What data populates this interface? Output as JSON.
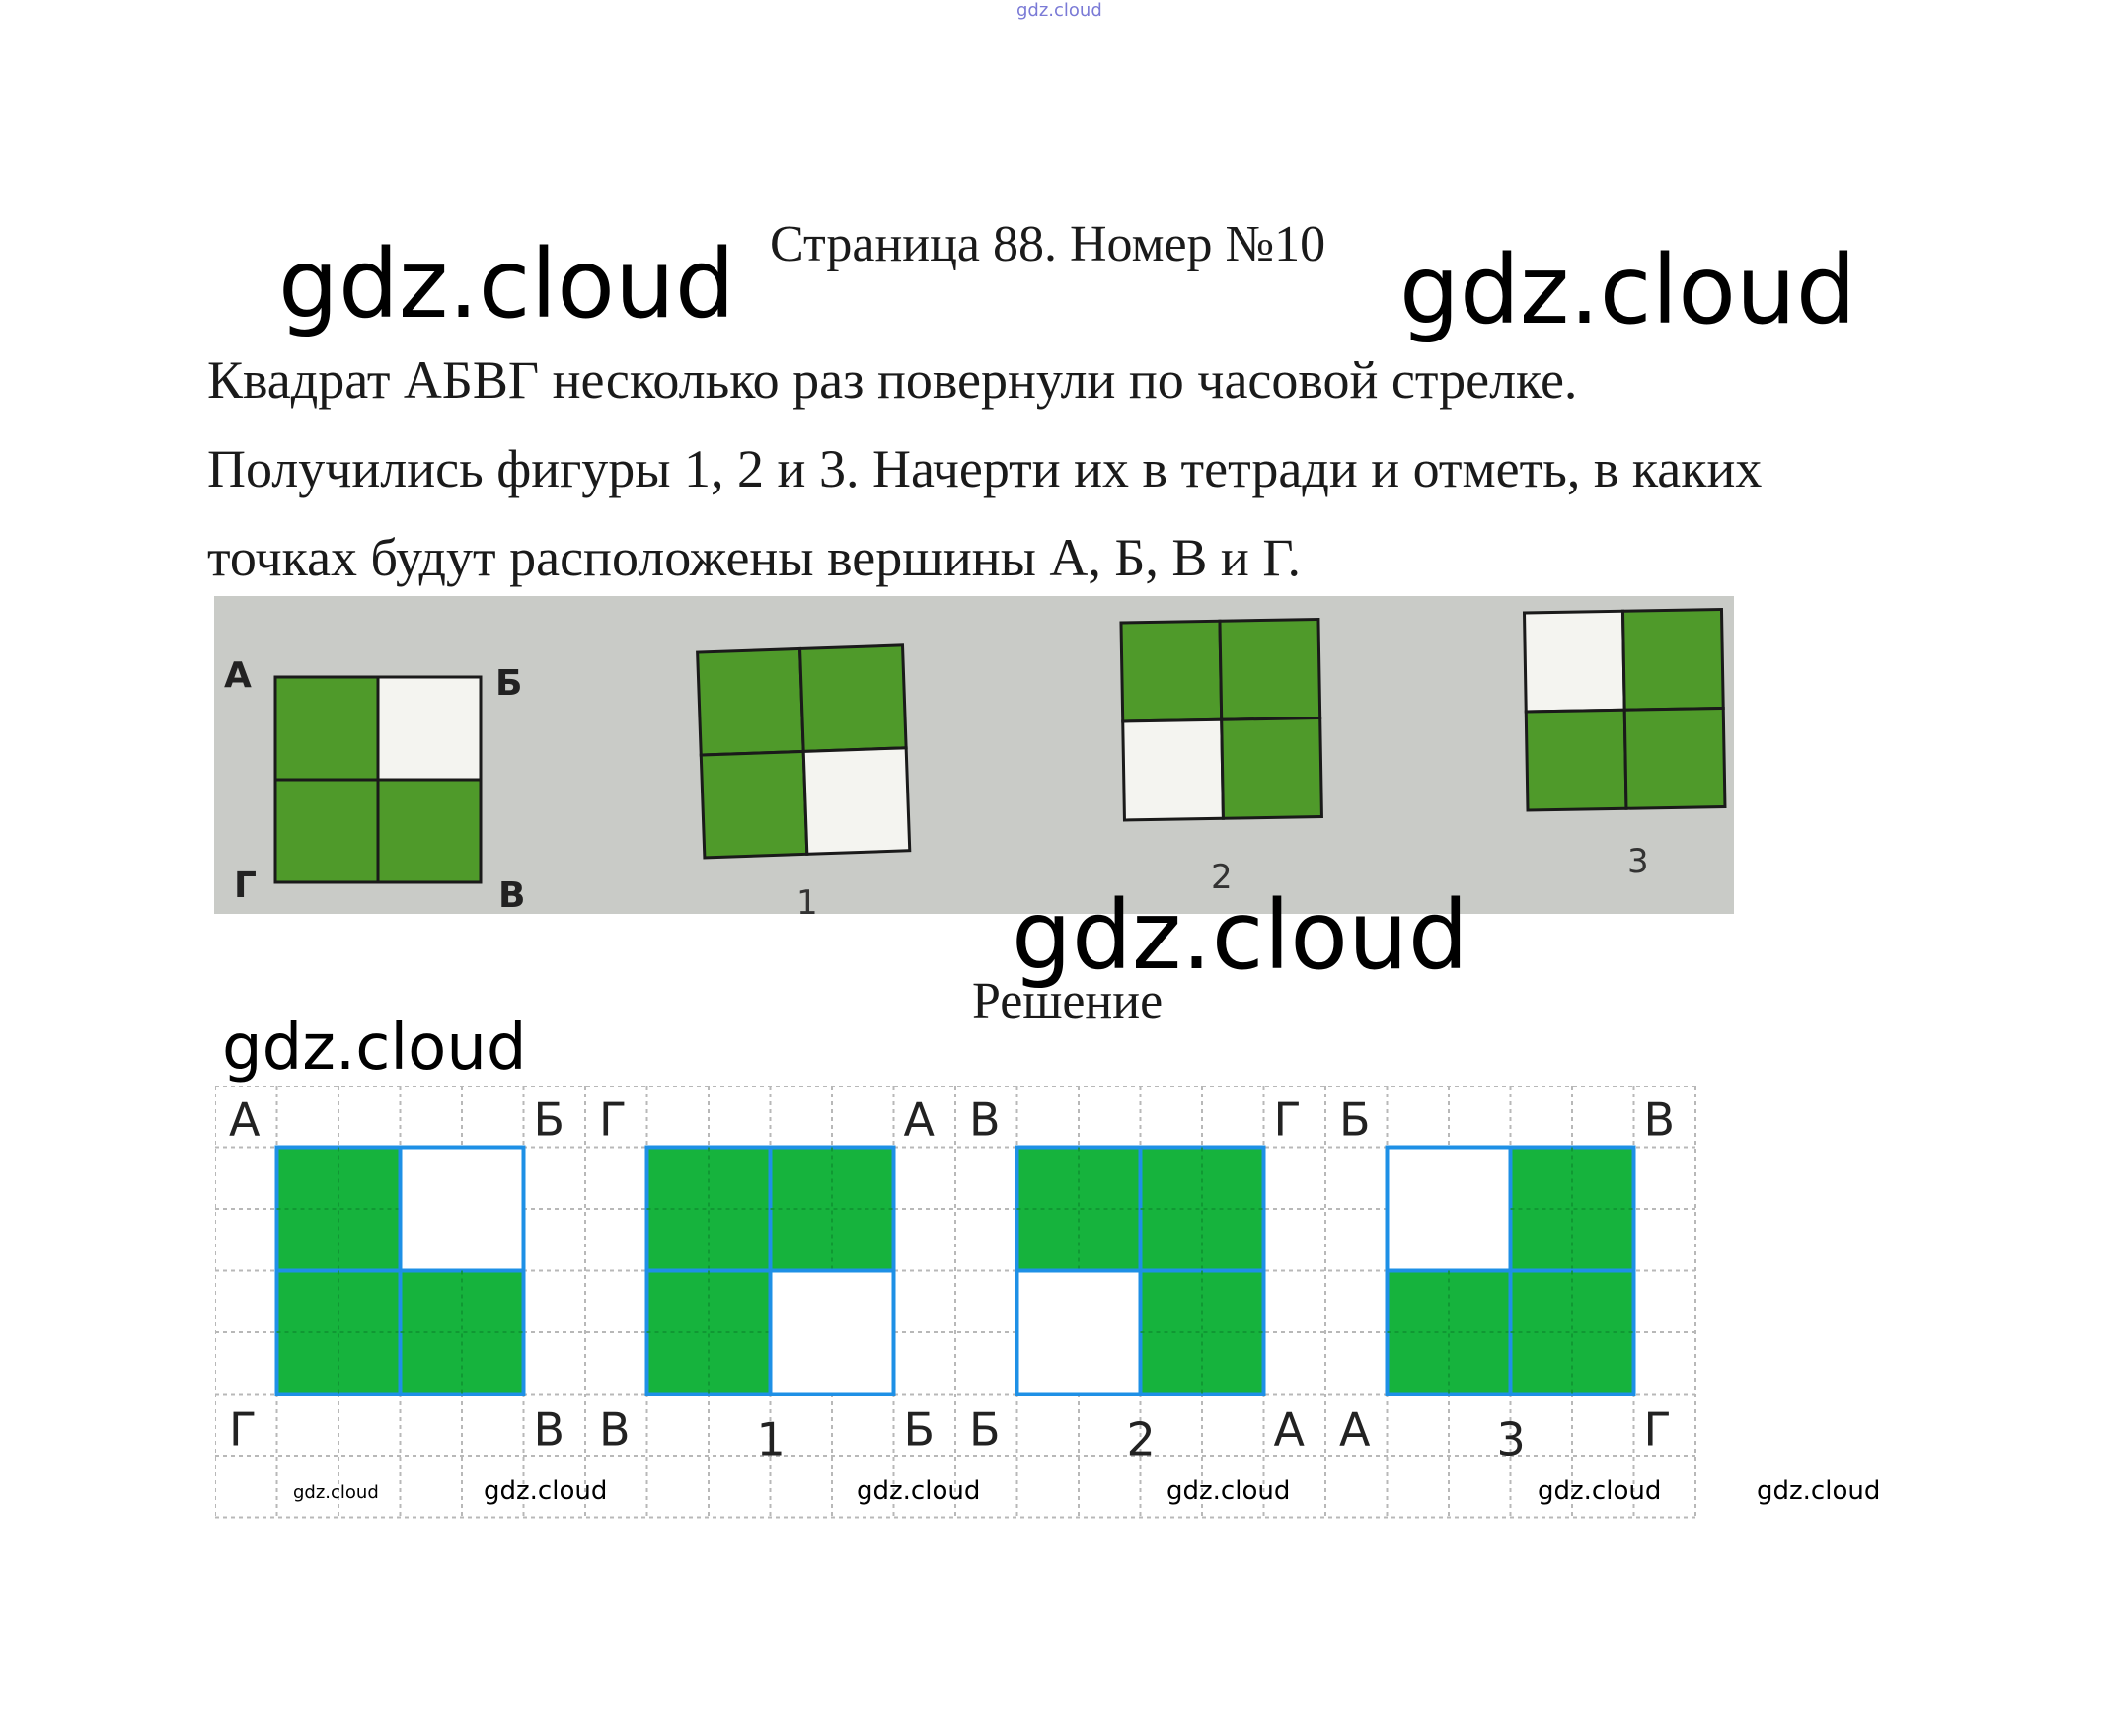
{
  "watermarks": {
    "top": "gdz.cloud",
    "big_left": "gdz.cloud",
    "big_right": "gdz.cloud",
    "center": "gdz.cloud",
    "solution": "gdz.cloud",
    "footer": [
      "gdz.cloud",
      "gdz.cloud",
      "gdz.cloud",
      "gdz.cloud",
      "gdz.cloud",
      "gdz.cloud"
    ]
  },
  "title": "Страница 88. Номер №10",
  "task": {
    "lines": [
      "Квадрат АБВГ несколько раз повернули по часовой стрелке.",
      "Получились фигуры 1, 2 и 3. Начерти их в тетради и отметь, в каких",
      "точках будут расположены вершины А, Б, В и Г."
    ]
  },
  "photo": {
    "source_labels": {
      "top_left": "А",
      "top_right": "Б",
      "bottom_left": "Г",
      "bottom_right": "В"
    },
    "figure_numbers": [
      "1",
      "2",
      "3"
    ]
  },
  "solution_label": "Решение",
  "solution": {
    "figures": [
      {
        "number": "",
        "corners": {
          "tl": "А",
          "tr": "Б",
          "bl": "Г",
          "br": "В"
        },
        "filled": [
          true,
          false,
          true,
          true
        ]
      },
      {
        "number": "1",
        "corners": {
          "tl": "Г",
          "tr": "А",
          "bl": "В",
          "br": "Б"
        },
        "filled": [
          true,
          true,
          true,
          false
        ]
      },
      {
        "number": "2",
        "corners": {
          "tl": "В",
          "tr": "Г",
          "bl": "Б",
          "br": "А"
        },
        "filled": [
          true,
          true,
          false,
          true
        ]
      },
      {
        "number": "3",
        "corners": {
          "tl": "Б",
          "tr": "В",
          "bl": "А",
          "br": "Г"
        },
        "filled": [
          false,
          true,
          true,
          true
        ]
      }
    ]
  },
  "colors": {
    "green_photo": "#4f9a2a",
    "green_solution": "#16b33d",
    "blue_border": "#1e90e6",
    "grid": "#b8b8b8",
    "photo_bg": "#c9cbc7"
  }
}
